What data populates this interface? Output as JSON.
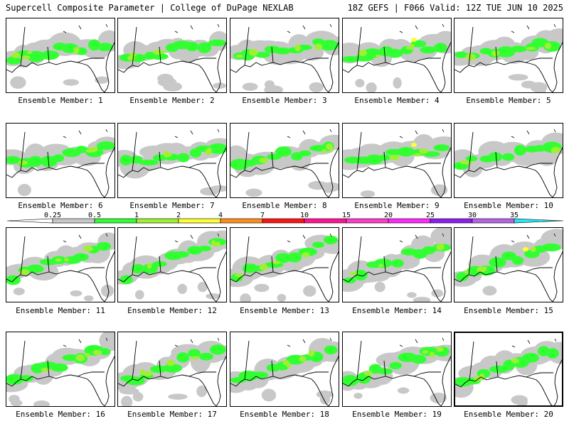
{
  "header": {
    "left": "Supercell Composite Parameter | College of DuPage NEXLAB",
    "right": "18Z GEFS | F066 Valid: 12Z TUE JUN 10 2025"
  },
  "member_label_prefix": "Ensemble Member: ",
  "members": [
    1,
    2,
    3,
    4,
    5,
    6,
    7,
    8,
    9,
    10,
    11,
    12,
    13,
    14,
    15,
    16,
    17,
    18,
    19,
    20
  ],
  "highlighted_member": 20,
  "colorbar": {
    "ticks": [
      "0.25",
      "0.5",
      "1",
      "2",
      "4",
      "7",
      "10",
      "15",
      "20",
      "25",
      "30",
      "35"
    ],
    "colors": [
      "#c8c8c8",
      "#32ff32",
      "#a0f032",
      "#ffff32",
      "#ff8c1e",
      "#ff1414",
      "#ff1493",
      "#ff3cc8",
      "#ff28ff",
      "#8c1ef0",
      "#b464e6",
      "#28e6f0"
    ]
  },
  "fills": {
    "low": "#c8c8c8",
    "mid": "#32ff32",
    "high": "#a0f032",
    "peak": "#ffff32"
  }
}
